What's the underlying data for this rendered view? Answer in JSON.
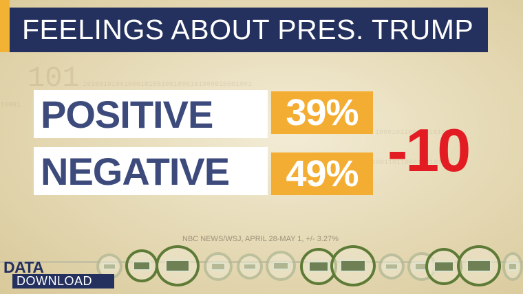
{
  "title": "FEELINGS ABOUT PRES. TRUMP",
  "rows": [
    {
      "label": "POSITIVE",
      "value": "39%"
    },
    {
      "label": "NEGATIVE",
      "value": "49%"
    }
  ],
  "difference": "-10",
  "source": "NBC NEWS/WSJ, APRIL 28-MAY 1, +/- 3.27%",
  "branding": {
    "top": "DATA_",
    "bottom": "DOWNLOAD"
  },
  "colors": {
    "title_bg": "#24305e",
    "accent": "#f2b233",
    "percent_bg": "#f4ad33",
    "label_text": "#3d4a7c",
    "difference": "#e31c23"
  },
  "icons": [
    "money-coin-icon"
  ]
}
